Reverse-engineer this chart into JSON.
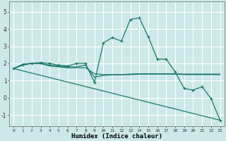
{
  "xlabel": "Humidex (Indice chaleur)",
  "bg_color": "#cce8e8",
  "grid_color": "#ffffff",
  "line_color": "#1a7a6a",
  "xlim": [
    -0.5,
    23.5
  ],
  "ylim": [
    -1.65,
    5.6
  ],
  "yticks": [
    -1,
    0,
    1,
    2,
    3,
    4,
    5
  ],
  "xticks": [
    0,
    1,
    2,
    3,
    4,
    5,
    6,
    7,
    8,
    9,
    10,
    11,
    12,
    13,
    14,
    15,
    16,
    17,
    18,
    19,
    20,
    21,
    22,
    23
  ],
  "series": [
    {
      "x": [
        0,
        1,
        2,
        3,
        4,
        5,
        6,
        7,
        8,
        9,
        10,
        11,
        12,
        13,
        14,
        15,
        16,
        17,
        18,
        19,
        20,
        21,
        22,
        23
      ],
      "y": [
        1.7,
        1.95,
        2.0,
        2.0,
        1.85,
        1.8,
        1.75,
        1.75,
        1.75,
        1.4,
        1.35,
        1.35,
        1.35,
        1.38,
        1.4,
        1.4,
        1.4,
        1.4,
        1.4,
        1.38,
        1.38,
        1.38,
        1.38,
        1.38
      ],
      "marker": null,
      "lw": 0.9
    },
    {
      "x": [
        0,
        1,
        2,
        3,
        4,
        5,
        6,
        7,
        8,
        9,
        10,
        11,
        12,
        13,
        14,
        15,
        16,
        17,
        18,
        19,
        20,
        21,
        22,
        23
      ],
      "y": [
        1.7,
        1.95,
        2.0,
        2.0,
        1.9,
        1.85,
        1.8,
        1.8,
        1.9,
        1.2,
        1.3,
        1.35,
        1.35,
        1.35,
        1.38,
        1.38,
        1.38,
        1.38,
        1.38,
        1.35,
        1.35,
        1.35,
        1.35,
        1.35
      ],
      "marker": null,
      "lw": 0.9
    },
    {
      "x": [
        0,
        1,
        2,
        3,
        4,
        5,
        6,
        7,
        8,
        9,
        10,
        11,
        12,
        13,
        14,
        15,
        16,
        17,
        18,
        19,
        20,
        21,
        22,
        23
      ],
      "y": [
        1.7,
        1.9,
        2.0,
        2.05,
        2.0,
        1.9,
        1.85,
        2.0,
        2.0,
        0.9,
        3.2,
        3.5,
        3.3,
        4.55,
        4.65,
        3.55,
        2.25,
        2.25,
        1.5,
        0.55,
        0.45,
        0.65,
        -0.05,
        -1.3
      ],
      "marker": "+",
      "lw": 0.9
    },
    {
      "x": [
        0,
        23
      ],
      "y": [
        1.7,
        -1.3
      ],
      "marker": null,
      "lw": 0.9
    }
  ]
}
